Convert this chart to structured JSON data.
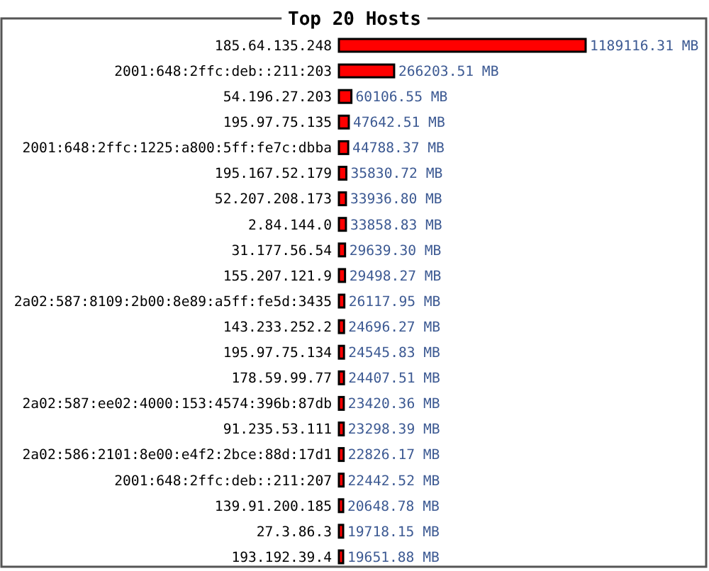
{
  "chart_data": {
    "type": "bar",
    "orientation": "horizontal",
    "title": "Top 20 Hosts",
    "color": "#ff0000",
    "categories": [
      "185.64.135.248",
      "2001:648:2ffc:deb::211:203",
      "54.196.27.203",
      "195.97.75.135",
      "2001:648:2ffc:1225:a800:5ff:fe7c:dbba",
      "195.167.52.179",
      "52.207.208.173",
      "2.84.144.0",
      "31.177.56.54",
      "155.207.121.9",
      "2a02:587:8109:2b00:8e89:a5ff:fe5d:3435",
      "143.233.252.2",
      "195.97.75.134",
      "178.59.99.77",
      "2a02:587:ee02:4000:153:4574:396b:87db",
      "91.235.53.111",
      "2a02:586:2101:8e00:e4f2:2bce:88d:17d1",
      "2001:648:2ffc:deb::211:207",
      "139.91.200.185",
      "27.3.86.3",
      "193.192.39.4"
    ],
    "values": [
      1189116.31,
      266203.51,
      60106.55,
      47642.51,
      44788.37,
      35830.72,
      33936.8,
      33858.83,
      29639.3,
      29498.27,
      26117.95,
      24696.27,
      24545.83,
      24407.51,
      23420.36,
      23298.39,
      22826.17,
      22442.52,
      20648.78,
      19718.15,
      19651.88
    ],
    "value_labels": [
      "1189116.31 MB",
      "266203.51 MB",
      "60106.55 MB",
      "47642.51 MB",
      "44788.37 MB",
      "35830.72 MB",
      "33936.80 MB",
      "33858.83 MB",
      "29639.30 MB",
      "29498.27 MB",
      "26117.95 MB",
      "24696.27 MB",
      "24545.83 MB",
      "24407.51 MB",
      "23420.36 MB",
      "23298.39 MB",
      "22826.17 MB",
      "22442.52 MB",
      "20648.78 MB",
      "19718.15 MB",
      "19651.88 MB"
    ]
  }
}
